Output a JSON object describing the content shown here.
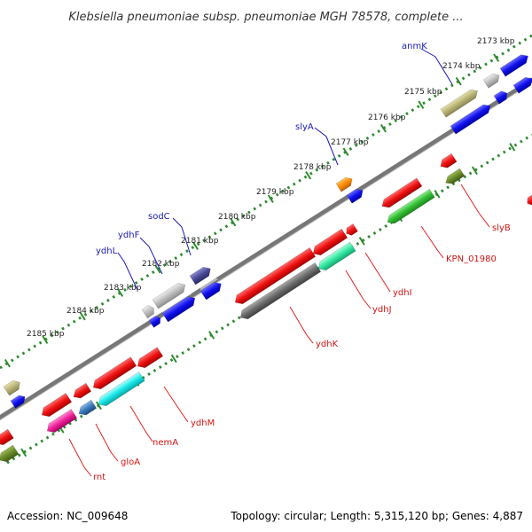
{
  "title": "Klebsiella pneumoniae subsp. pneumoniae MGH 78578, complete ...",
  "footer": {
    "accession": "Accession: NC_009648",
    "stats": "Topology: circular; Length: 5,315,120 bp; Genes: 4,887"
  },
  "kbp_labels": [
    {
      "text": "2173 kbp",
      "pos": 0
    },
    {
      "text": "2174 kbp",
      "pos": 1
    },
    {
      "text": "2175 kbp",
      "pos": 2
    },
    {
      "text": "2176 kbp",
      "pos": 3
    },
    {
      "text": "2177 kbp",
      "pos": 4
    },
    {
      "text": "2178 kbp",
      "pos": 5
    },
    {
      "text": "2179 kbp",
      "pos": 6
    },
    {
      "text": "2180 kbp",
      "pos": 7
    },
    {
      "text": "2181 kbp",
      "pos": 8
    },
    {
      "text": "2182 kbp",
      "pos": 9
    },
    {
      "text": "2183 kbp",
      "pos": 10
    },
    {
      "text": "2184 kbp",
      "pos": 11
    },
    {
      "text": "2185 kbp",
      "pos": 12
    }
  ],
  "gene_labels_forward": [
    "anmK",
    "slyA",
    "sodC",
    "ydhF",
    "ydhL"
  ],
  "gene_labels_reverse": [
    "slyB",
    "KPN_01980",
    "ydhI",
    "ydhJ",
    "ydhK",
    "ydhM",
    "nemA",
    "gloA",
    "rnt"
  ],
  "colors": {
    "red": "#ee1111",
    "blue": "#1111ee",
    "gray": "#bdbdbd",
    "darkgray": "#6a6a6a",
    "olive": "#b8b477",
    "olivegreen": "#6a8a2a",
    "orange": "#ff8c00",
    "green": "#33bb33",
    "aquagreen": "#33e6a0",
    "cyan": "#19e6e6",
    "steelblue": "#3a7abb",
    "pink": "#ee2299",
    "navy": "#4a4a9a",
    "backbone": "#7a7a7a",
    "tick_green": "#2e8b2e"
  }
}
